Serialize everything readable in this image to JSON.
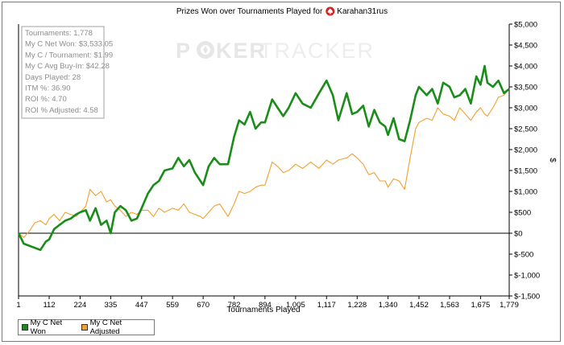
{
  "chart_data": {
    "type": "line",
    "title_prefix": "Prizes Won over Tournaments Played for",
    "player": "Karahan31rus",
    "xlabel": "Tournaments Played",
    "ylabel": "$",
    "xlim": [
      1,
      1779
    ],
    "ylim": [
      -1500,
      5000
    ],
    "x_ticks": [
      1,
      112,
      224,
      335,
      447,
      559,
      670,
      782,
      894,
      1005,
      1117,
      1228,
      1340,
      1452,
      1563,
      1675,
      1779
    ],
    "x_tick_labels": [
      "1",
      "112",
      "224",
      "335",
      "447",
      "559",
      "670",
      "782",
      "894",
      "1,005",
      "1,117",
      "1,228",
      "1,340",
      "1,452",
      "1,563",
      "1,675",
      "1,779"
    ],
    "y_ticks": [
      5000,
      4500,
      4000,
      3500,
      3000,
      2500,
      2000,
      1500,
      1000,
      500,
      0,
      -500,
      -1000,
      -1500
    ],
    "y_tick_labels": [
      "$5,000",
      "$4,500",
      "$4,000",
      "$3,500",
      "$3,000",
      "$2,500",
      "$2,000",
      "$1,500",
      "$1,000",
      "$500",
      "$0",
      "$-500",
      "$-1,000",
      "$-1,500"
    ],
    "grid": false,
    "legend_position": "bottom-left",
    "series": [
      {
        "name": "My C Net Won",
        "color": "#1a8c1a",
        "x": [
          1,
          20,
          40,
          60,
          80,
          100,
          112,
          130,
          150,
          170,
          190,
          210,
          224,
          245,
          260,
          280,
          300,
          320,
          335,
          350,
          370,
          390,
          410,
          430,
          447,
          470,
          490,
          510,
          530,
          559,
          580,
          600,
          620,
          640,
          660,
          670,
          690,
          710,
          730,
          760,
          782,
          800,
          820,
          840,
          860,
          880,
          894,
          920,
          940,
          960,
          980,
          1005,
          1030,
          1060,
          1090,
          1117,
          1140,
          1160,
          1190,
          1210,
          1228,
          1250,
          1270,
          1290,
          1310,
          1330,
          1340,
          1360,
          1380,
          1400,
          1420,
          1440,
          1452,
          1480,
          1500,
          1520,
          1540,
          1563,
          1580,
          1600,
          1620,
          1640,
          1660,
          1675,
          1690,
          1700,
          1720,
          1740,
          1760,
          1779
        ],
        "y": [
          0,
          -250,
          -300,
          -350,
          -400,
          -200,
          -150,
          100,
          200,
          300,
          350,
          450,
          500,
          550,
          300,
          600,
          200,
          300,
          0,
          500,
          650,
          550,
          300,
          350,
          600,
          950,
          1150,
          1250,
          1500,
          1550,
          1800,
          1600,
          1750,
          1450,
          1250,
          1150,
          1600,
          1800,
          1650,
          1650,
          2300,
          2700,
          2600,
          2900,
          2500,
          2650,
          2650,
          3200,
          3000,
          2800,
          3000,
          3350,
          3100,
          3000,
          3350,
          3650,
          3300,
          2700,
          3350,
          2850,
          2900,
          3050,
          2550,
          2950,
          2650,
          2550,
          2350,
          2750,
          2250,
          2200,
          2700,
          3300,
          3500,
          3300,
          3450,
          3100,
          3600,
          3500,
          3250,
          3300,
          3450,
          3100,
          3750,
          3550,
          4000,
          3600,
          3500,
          3650,
          3350,
          3450
        ]
      },
      {
        "name": "My C Net Adjusted",
        "color": "#f0a030",
        "x": [
          1,
          20,
          40,
          60,
          80,
          100,
          112,
          130,
          150,
          170,
          190,
          210,
          224,
          245,
          260,
          280,
          300,
          320,
          335,
          350,
          370,
          390,
          410,
          430,
          447,
          470,
          490,
          510,
          530,
          559,
          580,
          600,
          620,
          640,
          660,
          670,
          690,
          710,
          730,
          760,
          782,
          800,
          820,
          840,
          860,
          880,
          894,
          920,
          940,
          960,
          980,
          1005,
          1030,
          1060,
          1090,
          1117,
          1140,
          1160,
          1190,
          1210,
          1228,
          1250,
          1270,
          1290,
          1310,
          1330,
          1340,
          1360,
          1380,
          1400,
          1420,
          1440,
          1452,
          1480,
          1500,
          1520,
          1540,
          1563,
          1580,
          1600,
          1620,
          1640,
          1660,
          1675,
          1690,
          1700,
          1720,
          1740,
          1760,
          1779
        ],
        "y": [
          0,
          -100,
          50,
          250,
          300,
          200,
          350,
          450,
          300,
          500,
          450,
          400,
          500,
          650,
          1050,
          900,
          1000,
          750,
          800,
          650,
          550,
          400,
          500,
          450,
          550,
          550,
          400,
          600,
          500,
          600,
          550,
          700,
          500,
          450,
          400,
          350,
          500,
          650,
          700,
          400,
          700,
          1000,
          950,
          1000,
          1100,
          1150,
          1150,
          1700,
          1600,
          1450,
          1500,
          1650,
          1550,
          1700,
          1550,
          1750,
          1650,
          1750,
          1800,
          1900,
          1800,
          1650,
          1400,
          1450,
          1250,
          1250,
          1100,
          1300,
          1250,
          1050,
          1800,
          2500,
          2650,
          2750,
          2700,
          3000,
          2850,
          2800,
          2700,
          3000,
          2850,
          2700,
          2900,
          3000,
          2850,
          2800,
          3000,
          3250,
          3300,
          3450
        ]
      }
    ]
  },
  "stats": [
    "Tournaments: 1,778",
    "My C Net Won: $3,533.05",
    "My C / Tournament: $1.99",
    "My C Avg Buy-In: $42.28",
    "Days Played: 28",
    "ITM %: 36.90",
    "ROI %: 4.70",
    "ROI % Adjusted: 4.58"
  ],
  "watermark": {
    "left": "P",
    "right": "KER",
    "brand": "TRACKER"
  },
  "colors": {
    "axis": "#000000",
    "watermark": "#e8e8e8"
  }
}
